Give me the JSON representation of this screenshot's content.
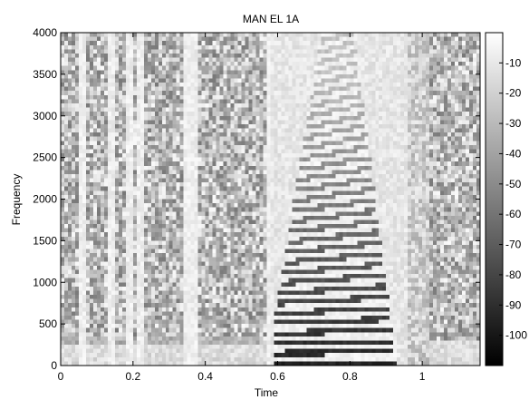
{
  "chart_data": {
    "type": "heatmap",
    "title": "MAN EL 1A",
    "xlabel": "Time",
    "ylabel": "Frequency",
    "xlim": [
      0,
      1.16
    ],
    "ylim": [
      0,
      4000
    ],
    "x_ticks": [
      0,
      0.2,
      0.4,
      0.6,
      0.8,
      1
    ],
    "x_tick_labels": [
      "0",
      "0.2",
      "0.4",
      "0.6",
      "0.8",
      "1"
    ],
    "y_ticks": [
      0,
      500,
      1000,
      1500,
      2000,
      2500,
      3000,
      3500,
      4000
    ],
    "y_tick_labels": [
      "0",
      "500",
      "1000",
      "1500",
      "2000",
      "2500",
      "3000",
      "3500",
      "4000"
    ],
    "colorbar": {
      "range": [
        -110,
        0
      ],
      "ticks": [
        -10,
        -20,
        -30,
        -40,
        -50,
        -60,
        -70,
        -80,
        -90,
        -100
      ],
      "tick_labels": [
        "-10",
        "-20",
        "-30",
        "-40",
        "-50",
        "-60",
        "-70",
        "-80",
        "-90",
        "-100"
      ],
      "colormap": "gray"
    },
    "grid": false
  }
}
